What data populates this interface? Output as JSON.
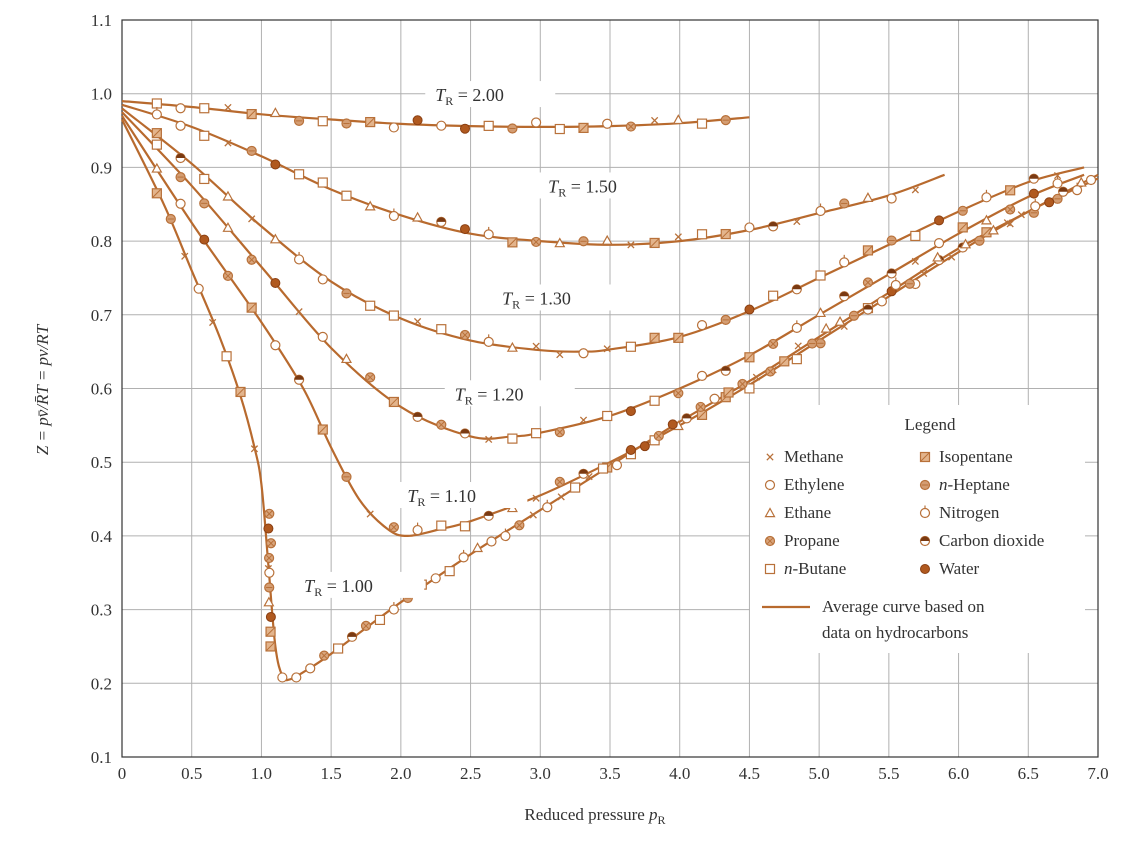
{
  "colors": {
    "curve": "#b86a2e",
    "marker": "#b8713a",
    "grid": "#b0b0b0",
    "axis": "#333333",
    "text": "#333333"
  },
  "chart_data": {
    "type": "line",
    "xlabel": "Reduced pressure p_R",
    "ylabel": "Z = pv̄/R̄T = pv/RT",
    "xlim": [
      0,
      7.0
    ],
    "ylim": [
      0.1,
      1.1
    ],
    "x_ticks": [
      "0",
      "0.5",
      "1.0",
      "1.5",
      "2.0",
      "2.5",
      "3.0",
      "3.5",
      "4.0",
      "4.5",
      "5.0",
      "5.5",
      "6.0",
      "6.5",
      "7.0"
    ],
    "y_ticks": [
      "0.1",
      "0.2",
      "0.3",
      "0.4",
      "0.5",
      "0.6",
      "0.7",
      "0.8",
      "0.9",
      "1.0",
      "1.1"
    ],
    "grid": true,
    "series": [
      {
        "name": "T_R = 2.00",
        "label": "= 2.00",
        "points": [
          [
            0,
            0.99
          ],
          [
            0.5,
            0.982
          ],
          [
            1.0,
            0.972
          ],
          [
            1.5,
            0.965
          ],
          [
            2.0,
            0.959
          ],
          [
            2.5,
            0.956
          ],
          [
            3.0,
            0.955
          ],
          [
            3.5,
            0.956
          ],
          [
            4.0,
            0.96
          ],
          [
            4.5,
            0.968
          ]
        ]
      },
      {
        "name": "T_R = 1.50",
        "label": "= 1.50",
        "points": [
          [
            0,
            0.985
          ],
          [
            0.5,
            0.955
          ],
          [
            1.0,
            0.915
          ],
          [
            1.5,
            0.87
          ],
          [
            2.0,
            0.835
          ],
          [
            2.5,
            0.81
          ],
          [
            3.0,
            0.8
          ],
          [
            3.5,
            0.795
          ],
          [
            4.0,
            0.8
          ],
          [
            4.5,
            0.815
          ],
          [
            5.0,
            0.838
          ],
          [
            5.5,
            0.862
          ],
          [
            5.9,
            0.89
          ]
        ]
      },
      {
        "name": "T_R = 1.30",
        "label": "= 1.30",
        "points": [
          [
            0,
            0.98
          ],
          [
            0.5,
            0.905
          ],
          [
            1.0,
            0.82
          ],
          [
            1.5,
            0.745
          ],
          [
            2.0,
            0.695
          ],
          [
            2.5,
            0.665
          ],
          [
            3.0,
            0.652
          ],
          [
            3.3,
            0.65
          ],
          [
            3.5,
            0.653
          ],
          [
            4.0,
            0.67
          ],
          [
            4.5,
            0.705
          ],
          [
            5.0,
            0.75
          ],
          [
            5.5,
            0.795
          ],
          [
            6.0,
            0.84
          ],
          [
            6.5,
            0.88
          ],
          [
            6.9,
            0.9
          ]
        ]
      },
      {
        "name": "T_R = 1.20",
        "label": "= 1.20",
        "points": [
          [
            0,
            0.975
          ],
          [
            0.5,
            0.875
          ],
          [
            1.0,
            0.765
          ],
          [
            1.5,
            0.655
          ],
          [
            2.0,
            0.575
          ],
          [
            2.5,
            0.535
          ],
          [
            2.8,
            0.535
          ],
          [
            3.0,
            0.54
          ],
          [
            3.5,
            0.563
          ],
          [
            4.0,
            0.6
          ],
          [
            4.5,
            0.645
          ],
          [
            5.0,
            0.7
          ],
          [
            5.5,
            0.755
          ],
          [
            6.0,
            0.81
          ],
          [
            6.5,
            0.86
          ],
          [
            6.9,
            0.89
          ]
        ]
      },
      {
        "name": "T_R = 1.10",
        "label": "= 1.10",
        "points": [
          [
            0,
            0.97
          ],
          [
            0.5,
            0.825
          ],
          [
            1.0,
            0.69
          ],
          [
            1.3,
            0.6
          ],
          [
            1.5,
            0.52
          ],
          [
            1.7,
            0.45
          ],
          [
            1.9,
            0.41
          ],
          [
            2.05,
            0.4
          ],
          [
            2.3,
            0.41
          ],
          [
            2.5,
            0.42
          ],
          [
            3.0,
            0.455
          ],
          [
            3.5,
            0.5
          ],
          [
            4.0,
            0.55
          ],
          [
            4.5,
            0.605
          ],
          [
            5.0,
            0.665
          ],
          [
            5.5,
            0.725
          ],
          [
            6.0,
            0.785
          ],
          [
            6.5,
            0.84
          ],
          [
            7.0,
            0.885
          ]
        ]
      },
      {
        "name": "T_R = 1.00",
        "label": "= 1.00",
        "points": [
          [
            0,
            0.965
          ],
          [
            0.3,
            0.85
          ],
          [
            0.5,
            0.76
          ],
          [
            0.7,
            0.67
          ],
          [
            0.85,
            0.59
          ],
          [
            0.95,
            0.52
          ],
          [
            1.0,
            0.47
          ],
          [
            1.05,
            0.36
          ],
          [
            1.1,
            0.25
          ],
          [
            1.15,
            0.21
          ],
          [
            1.2,
            0.205
          ],
          [
            1.3,
            0.215
          ],
          [
            1.5,
            0.24
          ],
          [
            2.0,
            0.31
          ],
          [
            2.5,
            0.375
          ],
          [
            3.0,
            0.435
          ],
          [
            3.5,
            0.495
          ],
          [
            4.0,
            0.555
          ],
          [
            4.5,
            0.61
          ],
          [
            5.0,
            0.67
          ],
          [
            5.5,
            0.73
          ],
          [
            6.0,
            0.79
          ],
          [
            6.5,
            0.84
          ],
          [
            7.0,
            0.89
          ]
        ]
      }
    ],
    "legend": {
      "title": "Legend",
      "position": "bottom-right",
      "entries": [
        {
          "label": "Methane",
          "marker": "x"
        },
        {
          "label": "Isopentane",
          "marker": "boxslash"
        },
        {
          "label": "Ethylene",
          "marker": "circle"
        },
        {
          "label": "n-Heptane",
          "marker": "circlefill"
        },
        {
          "label": "Ethane",
          "marker": "triangle"
        },
        {
          "label": "Nitrogen",
          "marker": "circletick"
        },
        {
          "label": "Propane",
          "marker": "circlecross"
        },
        {
          "label": "Carbon dioxide",
          "marker": "halfcircle"
        },
        {
          "label": "n-Butane",
          "marker": "square"
        },
        {
          "label": "Water",
          "marker": "filled"
        }
      ],
      "line_label_1": "Average curve based on",
      "line_label_2": "data on hydrocarbons"
    }
  }
}
